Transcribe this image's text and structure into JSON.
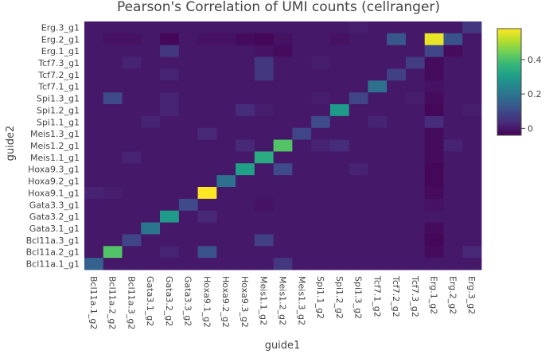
{
  "chart_data": {
    "type": "heatmap",
    "title": "Pearson's Correlation of UMI counts (cellranger)",
    "xlabel": "guide1",
    "ylabel": "guide2",
    "x_categories": [
      "Bcl11a.1_g2",
      "Bcl11a.2_g2",
      "Bcl11a.3_g2",
      "Gata3.1_g2",
      "Gata3.2_g2",
      "Gata3.3_g2",
      "Hoxa9.1_g2",
      "Hoxa9.2_g2",
      "Hoxa9.3_g2",
      "Meis1.1_g2",
      "Meis1.2_g2",
      "Meis1.3_g2",
      "Spi1.1_g2",
      "Spi1.2_g2",
      "Spi1.3_g2",
      "Tcf7.1_g2",
      "Tcf7.2_g2",
      "Tcf7.3_g2",
      "Erg.1_g2",
      "Erg.2_g2",
      "Erg.3_g2"
    ],
    "y_categories": [
      "Erg.3_g1",
      "Erg.2_g1",
      "Erg.1_g1",
      "Tcf7.3_g1",
      "Tcf7.2_g1",
      "Tcf7.1_g1",
      "Spi1.3_g1",
      "Spi1.2_g1",
      "Spi1.1_g1",
      "Meis1.3_g1",
      "Meis1.2_g1",
      "Meis1.1_g1",
      "Hoxa9.3_g1",
      "Hoxa9.2_g1",
      "Hoxa9.1_g1",
      "Gata3.3_g1",
      "Gata3.2_g1",
      "Gata3.1_g1",
      "Bcl11a.3_g1",
      "Bcl11a.2_g1",
      "Bcl11a.1_g1"
    ],
    "z": [
      [
        0.0,
        0.0,
        0.0,
        0.0,
        0.0,
        0.0,
        0.0,
        0.0,
        0.0,
        0.0,
        0.0,
        0.0,
        0.0,
        0.0,
        0.01,
        0.0,
        0.0,
        0.0,
        0.0,
        0.0,
        0.06
      ],
      [
        0.0,
        -0.01,
        -0.01,
        0.0,
        -0.03,
        0.0,
        -0.01,
        -0.01,
        -0.02,
        -0.03,
        -0.01,
        0.0,
        0.0,
        -0.01,
        0.0,
        0.0,
        0.13,
        0.0,
        0.56,
        0.12,
        0.0
      ],
      [
        0.0,
        0.0,
        0.0,
        0.0,
        0.06,
        0.0,
        0.0,
        0.0,
        0.0,
        -0.01,
        -0.02,
        0.0,
        0.0,
        0.0,
        0.0,
        0.0,
        0.0,
        0.0,
        0.09,
        -0.02,
        0.0
      ],
      [
        0.0,
        0.0,
        0.02,
        0.0,
        0.0,
        0.0,
        0.0,
        0.0,
        0.0,
        0.06,
        0.0,
        0.0,
        0.01,
        0.0,
        0.0,
        0.0,
        0.0,
        0.07,
        -0.02,
        0.0,
        0.0
      ],
      [
        0.0,
        0.0,
        0.0,
        0.0,
        0.02,
        0.0,
        0.0,
        0.0,
        0.0,
        0.06,
        0.0,
        0.0,
        0.0,
        0.0,
        0.0,
        0.0,
        0.08,
        0.0,
        -0.02,
        0.0,
        0.0
      ],
      [
        0.0,
        0.0,
        0.0,
        0.0,
        0.0,
        0.0,
        0.0,
        0.0,
        0.0,
        0.0,
        0.0,
        0.0,
        0.0,
        0.0,
        0.0,
        0.19,
        0.0,
        0.0,
        -0.01,
        0.0,
        0.0
      ],
      [
        0.0,
        0.1,
        0.0,
        0.0,
        0.02,
        0.0,
        0.0,
        0.0,
        0.0,
        0.0,
        0.0,
        0.0,
        0.01,
        0.0,
        0.09,
        0.0,
        0.0,
        0.01,
        -0.02,
        0.0,
        0.0
      ],
      [
        0.0,
        0.0,
        0.0,
        0.0,
        0.02,
        0.0,
        0.0,
        0.0,
        0.04,
        0.01,
        0.0,
        0.0,
        0.0,
        0.3,
        0.0,
        0.0,
        0.0,
        0.0,
        -0.03,
        0.0,
        0.01
      ],
      [
        0.0,
        0.0,
        0.0,
        0.02,
        0.0,
        0.0,
        0.0,
        0.0,
        0.0,
        0.0,
        0.0,
        0.0,
        0.1,
        0.0,
        0.0,
        0.02,
        0.0,
        0.0,
        0.04,
        0.0,
        0.0
      ],
      [
        0.0,
        0.0,
        0.0,
        0.0,
        0.0,
        0.0,
        0.03,
        0.0,
        0.0,
        0.0,
        0.0,
        0.09,
        0.0,
        0.0,
        0.0,
        0.0,
        0.0,
        0.0,
        -0.02,
        0.0,
        0.0
      ],
      [
        0.0,
        0.0,
        0.0,
        0.0,
        0.0,
        0.0,
        0.0,
        0.0,
        0.03,
        0.0,
        0.41,
        0.0,
        0.02,
        0.04,
        0.0,
        0.0,
        0.0,
        0.0,
        -0.02,
        0.02,
        0.0
      ],
      [
        0.0,
        0.0,
        0.02,
        0.0,
        0.0,
        0.0,
        0.0,
        0.0,
        0.0,
        0.34,
        0.0,
        0.0,
        0.0,
        0.0,
        0.0,
        0.0,
        0.0,
        0.0,
        -0.02,
        0.0,
        0.0
      ],
      [
        0.0,
        0.0,
        0.0,
        0.0,
        0.0,
        0.0,
        0.0,
        0.0,
        0.31,
        0.0,
        0.1,
        0.0,
        0.0,
        0.0,
        0.02,
        0.0,
        0.0,
        0.0,
        -0.03,
        0.0,
        0.0
      ],
      [
        0.0,
        0.0,
        0.0,
        0.0,
        0.0,
        0.0,
        0.0,
        0.19,
        0.0,
        0.0,
        0.0,
        0.0,
        0.0,
        0.0,
        0.0,
        0.0,
        0.0,
        0.0,
        -0.03,
        0.0,
        0.0
      ],
      [
        0.02,
        0.01,
        0.0,
        0.0,
        0.0,
        0.0,
        0.58,
        0.0,
        0.0,
        0.0,
        0.0,
        0.0,
        0.0,
        0.0,
        0.0,
        0.0,
        0.0,
        0.0,
        -0.02,
        0.0,
        0.0
      ],
      [
        0.0,
        0.0,
        0.0,
        0.0,
        0.0,
        0.1,
        0.0,
        0.0,
        0.0,
        -0.01,
        0.0,
        0.0,
        0.0,
        0.0,
        0.0,
        0.0,
        0.0,
        0.0,
        -0.01,
        0.0,
        0.0
      ],
      [
        0.0,
        0.0,
        0.0,
        0.0,
        0.3,
        0.0,
        0.03,
        0.0,
        0.0,
        0.0,
        0.0,
        0.0,
        0.0,
        0.0,
        0.0,
        0.0,
        0.0,
        0.0,
        0.0,
        0.0,
        0.0
      ],
      [
        0.0,
        0.0,
        0.0,
        0.2,
        0.0,
        0.0,
        0.0,
        0.0,
        0.0,
        0.0,
        0.0,
        0.0,
        0.0,
        0.0,
        0.0,
        0.0,
        0.0,
        0.0,
        -0.02,
        0.0,
        0.0
      ],
      [
        0.0,
        0.0,
        0.09,
        0.0,
        0.0,
        0.0,
        0.0,
        0.0,
        0.0,
        0.08,
        0.0,
        0.0,
        0.0,
        0.0,
        0.0,
        0.0,
        0.0,
        0.0,
        -0.03,
        0.0,
        0.0
      ],
      [
        0.0,
        0.41,
        0.0,
        0.0,
        0.02,
        0.0,
        0.12,
        0.0,
        0.0,
        0.0,
        0.0,
        0.0,
        0.0,
        0.0,
        0.0,
        0.0,
        0.0,
        0.0,
        -0.02,
        0.0,
        0.03
      ],
      [
        0.15,
        0.0,
        0.0,
        0.0,
        0.0,
        0.0,
        0.0,
        0.0,
        0.0,
        0.0,
        0.06,
        0.0,
        0.0,
        0.0,
        0.0,
        0.0,
        0.0,
        0.0,
        0.0,
        0.0,
        0.0
      ]
    ],
    "zlim": [
      -0.04,
      0.58
    ],
    "colorbar_ticks": [
      0,
      0.2,
      0.4
    ],
    "colorscale": "Viridis",
    "colorbar_position": "right"
  }
}
